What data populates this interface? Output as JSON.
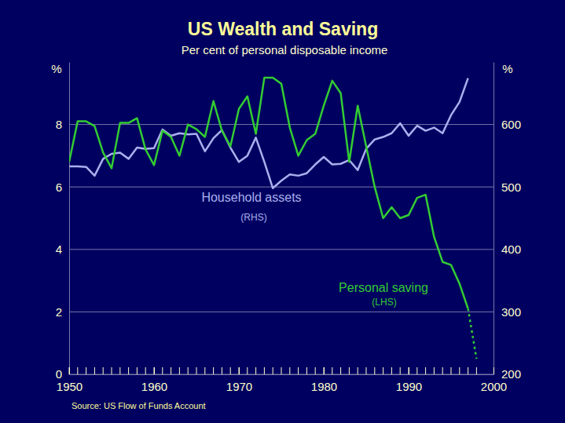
{
  "chart_data": {
    "type": "line",
    "title": "US Wealth and Saving",
    "subtitle": "Per cent of personal disposable income",
    "ylabel": "%",
    "y2label": "%",
    "source": "Source: US Flow of Funds Account",
    "x": [
      1950,
      1951,
      1952,
      1953,
      1954,
      1955,
      1956,
      1957,
      1958,
      1959,
      1960,
      1961,
      1962,
      1963,
      1964,
      1965,
      1966,
      1967,
      1968,
      1969,
      1970,
      1971,
      1972,
      1973,
      1974,
      1975,
      1976,
      1977,
      1978,
      1979,
      1980,
      1981,
      1982,
      1983,
      1984,
      1985,
      1986,
      1987,
      1988,
      1989,
      1990,
      1991,
      1992,
      1993,
      1994,
      1995,
      1996,
      1997,
      1998
    ],
    "xlim": [
      1950,
      2000
    ],
    "xticks": [
      1950,
      1960,
      1970,
      1980,
      1990,
      2000
    ],
    "ylim": [
      0,
      10
    ],
    "yticks": [
      0,
      2,
      4,
      6,
      8
    ],
    "y2lim": [
      200,
      700
    ],
    "y2ticks": [
      200,
      300,
      400,
      500,
      600
    ],
    "grid": true,
    "series": [
      {
        "name": "Household assets",
        "color": "#aab0ee",
        "axis": "y2",
        "line_style": "solid",
        "values": [
          533,
          533,
          532,
          518,
          545,
          553,
          555,
          545,
          563,
          561,
          562,
          592,
          582,
          586,
          584,
          585,
          557,
          578,
          591,
          563,
          540,
          550,
          579,
          540,
          498,
          510,
          520,
          518,
          522,
          536,
          548,
          536,
          537,
          543,
          527,
          561,
          576,
          580,
          586,
          602,
          582,
          598,
          590,
          595,
          586,
          615,
          636,
          674,
          null
        ]
      },
      {
        "name": "Personal saving",
        "color": "#33cc33",
        "line_style": "solid",
        "values": [
          6.8,
          8.1,
          8.1,
          7.95,
          7.1,
          6.6,
          8.05,
          8.05,
          8.2,
          7.2,
          6.7,
          7.8,
          7.6,
          7.0,
          8.0,
          7.85,
          7.6,
          8.75,
          7.8,
          7.3,
          8.5,
          8.9,
          7.7,
          9.5,
          9.5,
          9.3,
          7.9,
          7.0,
          7.5,
          7.7,
          8.6,
          9.4,
          9.0,
          6.8,
          8.6,
          7.3,
          6.0,
          5.0,
          5.35,
          5.0,
          5.1,
          5.65,
          5.75,
          4.4,
          3.6,
          3.5,
          2.9,
          2.1,
          null
        ]
      },
      {
        "color": "#33cc33",
        "line_style": "dotted",
        "values": [
          null,
          null,
          null,
          null,
          null,
          null,
          null,
          null,
          null,
          null,
          null,
          null,
          null,
          null,
          null,
          null,
          null,
          null,
          null,
          null,
          null,
          null,
          null,
          null,
          null,
          null,
          null,
          null,
          null,
          null,
          null,
          null,
          null,
          null,
          null,
          null,
          null,
          null,
          null,
          null,
          null,
          null,
          null,
          null,
          null,
          null,
          null,
          2.1,
          0.5
        ]
      }
    ],
    "annotations": [
      "(RHS)",
      "(LHS)"
    ]
  }
}
